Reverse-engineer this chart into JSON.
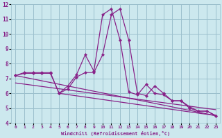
{
  "xlabel": "Windchill (Refroidissement éolien,°C)",
  "bg_color": "#cce8ee",
  "grid_color": "#9bbfcc",
  "line_color": "#882288",
  "xlim": [
    -0.5,
    23.5
  ],
  "ylim": [
    4,
    12
  ],
  "xticks": [
    0,
    1,
    2,
    3,
    4,
    5,
    6,
    7,
    8,
    9,
    10,
    11,
    12,
    13,
    14,
    15,
    16,
    17,
    18,
    19,
    20,
    21,
    22,
    23
  ],
  "yticks": [
    4,
    5,
    6,
    7,
    8,
    9,
    10,
    11,
    12
  ],
  "series1": {
    "x": [
      0,
      1,
      2,
      3,
      4,
      5,
      6,
      7,
      8,
      9,
      10,
      11,
      12,
      13,
      14,
      15,
      16,
      17,
      18,
      19,
      20,
      21,
      22,
      23
    ],
    "y": [
      7.2,
      7.4,
      7.4,
      7.4,
      7.4,
      6.0,
      6.5,
      7.25,
      8.6,
      7.5,
      11.3,
      11.7,
      9.6,
      6.1,
      5.9,
      6.6,
      6.0,
      5.9,
      5.5,
      5.5,
      5.1,
      4.8,
      4.8,
      4.5
    ]
  },
  "series2": {
    "x": [
      0,
      1,
      2,
      3,
      4,
      5,
      6,
      7,
      8,
      9,
      10,
      11,
      12,
      13,
      14,
      15,
      16,
      17,
      18,
      19,
      20,
      21,
      22,
      23
    ],
    "y": [
      7.2,
      7.35,
      7.35,
      7.35,
      7.35,
      6.0,
      6.3,
      7.1,
      7.4,
      7.4,
      8.6,
      11.3,
      11.7,
      9.6,
      6.0,
      5.85,
      6.5,
      6.0,
      5.5,
      5.5,
      5.0,
      4.8,
      4.8,
      4.5
    ]
  },
  "series3": {
    "x": [
      0,
      23
    ],
    "y": [
      7.2,
      4.5
    ]
  },
  "series4": {
    "x": [
      0,
      23
    ],
    "y": [
      6.7,
      4.9
    ]
  },
  "series5": {
    "x": [
      5,
      23
    ],
    "y": [
      6.0,
      4.5
    ]
  }
}
